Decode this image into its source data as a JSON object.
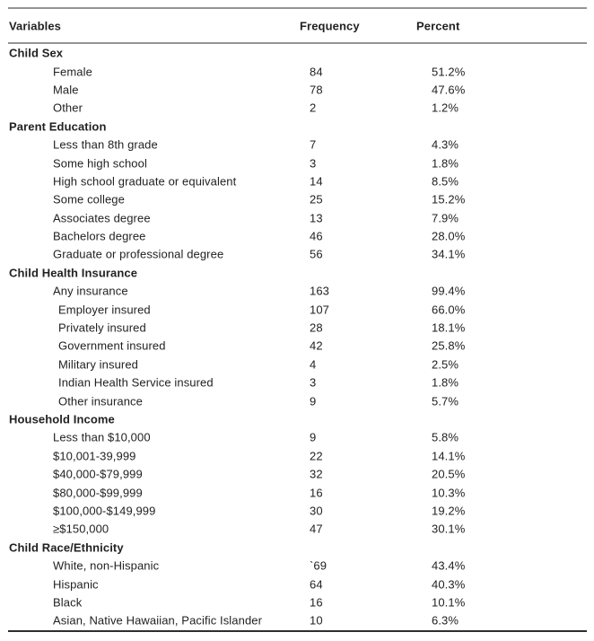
{
  "table": {
    "columns": [
      "Variables",
      "Frequency",
      "Percent"
    ],
    "sections": [
      {
        "title": "Child Sex",
        "rows": [
          {
            "label": "Female",
            "frequency": "84",
            "percent": "51.2%",
            "indent": 1
          },
          {
            "label": "Male",
            "frequency": "78",
            "percent": "47.6%",
            "indent": 1
          },
          {
            "label": "Other",
            "frequency": "2",
            "percent": "1.2%",
            "indent": 1
          }
        ]
      },
      {
        "title": "Parent Education",
        "rows": [
          {
            "label": "Less than 8th grade",
            "frequency": "7",
            "percent": "4.3%",
            "indent": 1
          },
          {
            "label": "Some high school",
            "frequency": "3",
            "percent": "1.8%",
            "indent": 1
          },
          {
            "label": "High school graduate or equivalent",
            "frequency": "14",
            "percent": "8.5%",
            "indent": 1
          },
          {
            "label": "Some college",
            "frequency": "25",
            "percent": "15.2%",
            "indent": 1
          },
          {
            "label": "Associates degree",
            "frequency": "13",
            "percent": "7.9%",
            "indent": 1
          },
          {
            "label": "Bachelors degree",
            "frequency": "46",
            "percent": "28.0%",
            "indent": 1
          },
          {
            "label": "Graduate or professional degree",
            "frequency": "56",
            "percent": "34.1%",
            "indent": 1
          }
        ]
      },
      {
        "title": "Child Health Insurance",
        "rows": [
          {
            "label": "Any insurance",
            "frequency": "163",
            "percent": "99.4%",
            "indent": 1
          },
          {
            "label": "Employer insured",
            "frequency": "107",
            "percent": "66.0%",
            "indent": 2
          },
          {
            "label": "Privately insured",
            "frequency": "28",
            "percent": "18.1%",
            "indent": 2
          },
          {
            "label": "Government insured",
            "frequency": "42",
            "percent": "25.8%",
            "indent": 2
          },
          {
            "label": "Military insured",
            "frequency": "4",
            "percent": "2.5%",
            "indent": 2
          },
          {
            "label": "Indian Health Service insured",
            "frequency": "3",
            "percent": "1.8%",
            "indent": 2
          },
          {
            "label": "Other insurance",
            "frequency": "9",
            "percent": "5.7%",
            "indent": 2
          }
        ]
      },
      {
        "title": "Household Income",
        "rows": [
          {
            "label": "Less than $10,000",
            "frequency": "9",
            "percent": "5.8%",
            "indent": 1
          },
          {
            "label": "$10,001-39,999",
            "frequency": "22",
            "percent": "14.1%",
            "indent": 1
          },
          {
            "label": "$40,000-$79,999",
            "frequency": "32",
            "percent": "20.5%",
            "indent": 1
          },
          {
            "label": "$80,000-$99,999",
            "frequency": "16",
            "percent": "10.3%",
            "indent": 1
          },
          {
            "label": "$100,000-$149,999",
            "frequency": "30",
            "percent": "19.2%",
            "indent": 1
          },
          {
            "label": "≥$150,000",
            "frequency": "47",
            "percent": "30.1%",
            "indent": 1
          }
        ]
      },
      {
        "title": "Child Race/Ethnicity",
        "rows": [
          {
            "label": "White, non-Hispanic",
            "frequency": "`69",
            "percent": "43.4%",
            "indent": 1
          },
          {
            "label": "Hispanic",
            "frequency": "64",
            "percent": "40.3%",
            "indent": 1
          },
          {
            "label": "Black",
            "frequency": "16",
            "percent": "10.1%",
            "indent": 1
          },
          {
            "label": "Asian, Native Hawaiian, Pacific Islander",
            "frequency": "10",
            "percent": "6.3%",
            "indent": 1
          }
        ]
      }
    ]
  }
}
